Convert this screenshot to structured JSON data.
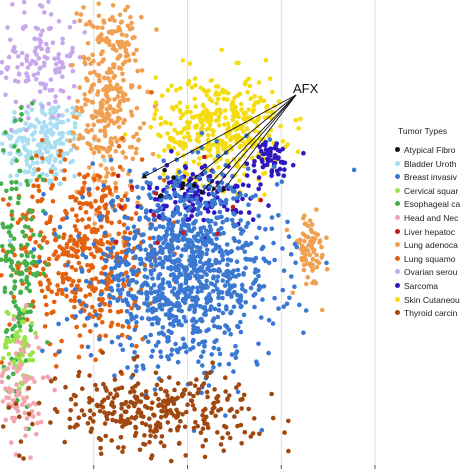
{
  "chart_data": {
    "type": "scatter",
    "title": "",
    "xlabel": "",
    "ylabel": "",
    "xlim": [
      -60,
      60
    ],
    "ylim": [
      -60,
      60
    ],
    "grid": true,
    "legend_placement": "right",
    "legend_title": "Tumor Types",
    "annotation": "AFX",
    "series": [
      {
        "name": "Atypical Fibro",
        "color": "#111111"
      },
      {
        "name": "Bladder Uroth",
        "color": "#a9def0"
      },
      {
        "name": "Breast invasiv",
        "color": "#3a78d2"
      },
      {
        "name": "Cervical squar",
        "color": "#9be34a"
      },
      {
        "name": "Esophageal ca",
        "color": "#44b04a"
      },
      {
        "name": "Head and Nec",
        "color": "#f2a5ad"
      },
      {
        "name": "Liver hepatoc",
        "color": "#c01a22"
      },
      {
        "name": "Lung adenoca",
        "color": "#f0a050"
      },
      {
        "name": "Lung squamo",
        "color": "#e4620e"
      },
      {
        "name": "Ovarian serou",
        "color": "#c8a8ec"
      },
      {
        "name": "Sarcoma",
        "color": "#3018c0"
      },
      {
        "name": "Skin Cutaneou",
        "color": "#f4dc10"
      },
      {
        "name": "Thyroid carcin",
        "color": "#a04810"
      }
    ],
    "clusters": [
      {
        "series": 1,
        "cx": -46,
        "cy": 23,
        "sx": 7,
        "sy": 6,
        "n": 210
      },
      {
        "series": 9,
        "cx": -47,
        "cy": 45,
        "sx": 6,
        "sy": 8,
        "n": 140
      },
      {
        "series": 7,
        "cx": -25,
        "cy": 35,
        "sx": 5,
        "sy": 13,
        "n": 330
      },
      {
        "series": 7,
        "cx": 39,
        "cy": -5,
        "sx": 3,
        "sy": 5,
        "n": 70
      },
      {
        "series": 8,
        "cx": -33,
        "cy": -5,
        "sx": 13,
        "sy": 12,
        "n": 480
      },
      {
        "series": 4,
        "cx": -54,
        "cy": -8,
        "sx": 4,
        "sy": 16,
        "n": 160
      },
      {
        "series": 3,
        "cx": -54,
        "cy": -30,
        "sx": 3,
        "sy": 6,
        "n": 60
      },
      {
        "series": 5,
        "cx": -54,
        "cy": -40,
        "sx": 4,
        "sy": 8,
        "n": 90
      },
      {
        "series": 11,
        "cx": 10,
        "cy": 27,
        "sx": 10,
        "sy": 7,
        "n": 380
      },
      {
        "series": 10,
        "cx": 5,
        "cy": 10,
        "sx": 9,
        "sy": 4,
        "n": 130
      },
      {
        "series": 10,
        "cx": 26,
        "cy": 19,
        "sx": 4,
        "sy": 2.5,
        "n": 55
      },
      {
        "series": 2,
        "cx": -1,
        "cy": -10,
        "sx": 15,
        "sy": 12,
        "n": 1050
      },
      {
        "series": 12,
        "cx": -12,
        "cy": -46,
        "sx": 17,
        "sy": 5,
        "n": 330
      },
      {
        "series": 6,
        "cx": -8,
        "cy": 6,
        "sx": 12,
        "sy": 10,
        "n": 12
      },
      {
        "series": 0,
        "cx": 2,
        "cy": 12,
        "sx": 5,
        "sy": 3,
        "n": 6
      }
    ]
  }
}
